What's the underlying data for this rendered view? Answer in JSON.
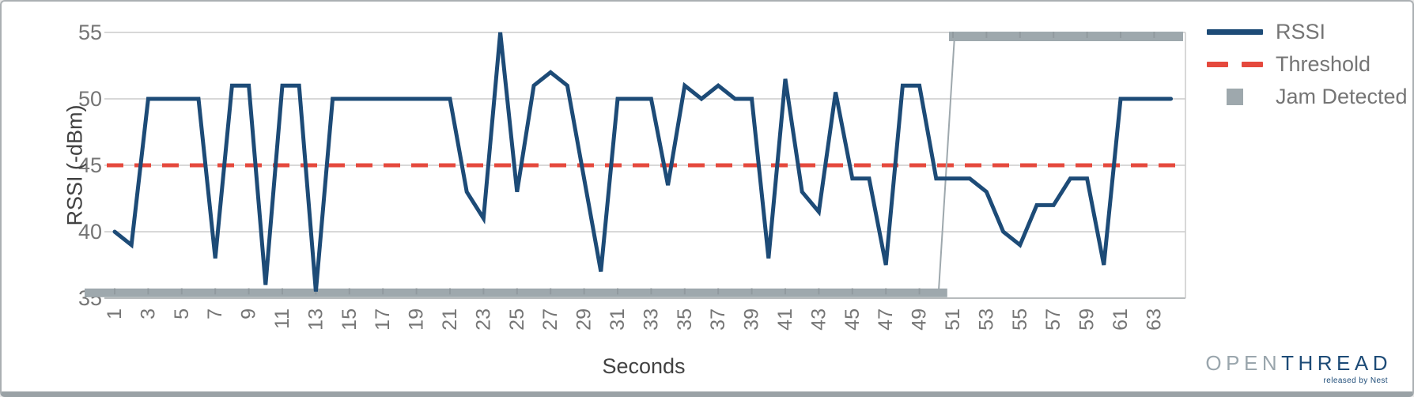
{
  "window": {
    "background": "#ffffff",
    "border_color": "#abb0b3",
    "bottom_bar_color": "#9aa2a6"
  },
  "chart_data": {
    "type": "line",
    "title": "",
    "xlabel": "Seconds",
    "ylabel": "RSSI (-dBm)",
    "ylim": [
      35,
      55
    ],
    "yticks": [
      35,
      40,
      45,
      50,
      55
    ],
    "xticks": [
      1,
      3,
      5,
      7,
      9,
      11,
      13,
      15,
      17,
      19,
      21,
      23,
      25,
      27,
      29,
      31,
      33,
      35,
      37,
      39,
      41,
      43,
      45,
      47,
      49,
      51,
      53,
      55,
      57,
      59,
      61,
      63
    ],
    "x": [
      1,
      2,
      3,
      4,
      5,
      6,
      7,
      8,
      9,
      10,
      11,
      12,
      13,
      14,
      15,
      16,
      17,
      18,
      19,
      20,
      21,
      22,
      23,
      24,
      25,
      26,
      27,
      28,
      29,
      30,
      31,
      32,
      33,
      34,
      35,
      36,
      37,
      38,
      39,
      40,
      41,
      42,
      43,
      44,
      45,
      46,
      47,
      48,
      49,
      50,
      51,
      52,
      53,
      54,
      55,
      56,
      57,
      58,
      59,
      60,
      61,
      62,
      63,
      64
    ],
    "grid": true,
    "legend_position": "right",
    "axis_tick_color": "#757575",
    "grid_color": "#cccccc",
    "series": [
      {
        "name": "RSSI",
        "type": "line",
        "color": "#1d4b77",
        "values": [
          40,
          39,
          50,
          50,
          50,
          50,
          38,
          51,
          51,
          36,
          51,
          51,
          35.5,
          50,
          50,
          50,
          50,
          50,
          50,
          50,
          50,
          43,
          41,
          55,
          43,
          51,
          52,
          51,
          44,
          37,
          50,
          50,
          50,
          43.5,
          51,
          50,
          51,
          50,
          50,
          38,
          51.5,
          43,
          41.5,
          50.5,
          44,
          44,
          37.5,
          51,
          51,
          44,
          44,
          44,
          43,
          40,
          39,
          42,
          42,
          44,
          44,
          37.5,
          50,
          50,
          50,
          50
        ]
      },
      {
        "name": "Threshold",
        "type": "dashed-line",
        "color": "#e5493d",
        "value": 45
      },
      {
        "name": "Jam Detected",
        "type": "step-bar",
        "color": "#9ea8ad",
        "segments": [
          {
            "value": 35.4,
            "from": 1,
            "to": 50
          },
          {
            "value": 54.7,
            "from": 51,
            "to": 64
          }
        ]
      }
    ]
  },
  "legend": {
    "items": [
      {
        "label": "RSSI",
        "color": "#1d4b77",
        "swatch": "line"
      },
      {
        "label": "Threshold",
        "color": "#e5493d",
        "swatch": "dashed-line"
      },
      {
        "label": "Jam Detected",
        "color": "#9ea8ad",
        "swatch": "square"
      }
    ]
  },
  "logo": {
    "part1": "OPEN",
    "part2": "THREAD",
    "part1_color": "#9aa6ad",
    "part2_color": "#1d4b77",
    "tagline": "released by Nest"
  }
}
